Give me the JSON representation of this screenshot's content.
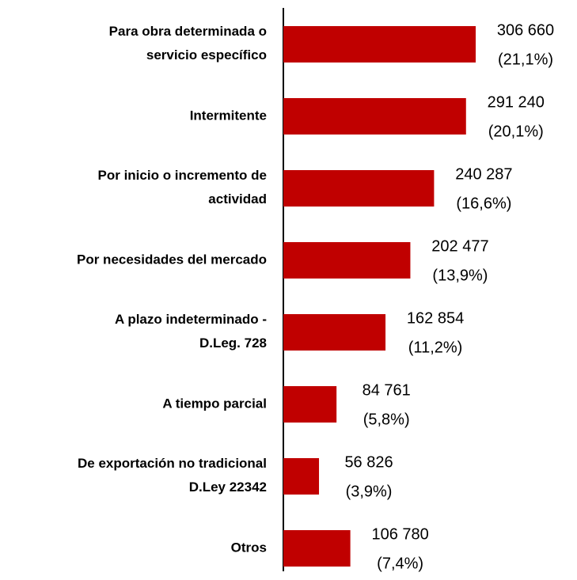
{
  "chart_data": {
    "type": "bar",
    "orientation": "horizontal",
    "color": "#c00000",
    "categories": [
      "Para obra determinada o\nservicio específico",
      "Intermitente",
      "Por inicio o incremento de\nactividad",
      "Por necesidades del mercado",
      "A plazo indeterminado -\nD.Leg. 728",
      "A tiempo parcial",
      "De exportación no tradicional\nD.Ley 22342",
      "Otros"
    ],
    "values": [
      306660,
      291240,
      240287,
      202477,
      162854,
      84761,
      56826,
      106780
    ],
    "value_labels": [
      "306 660",
      "291 240",
      "240 287",
      "202 477",
      "162 854",
      "84 761",
      "56 826",
      "106 780"
    ],
    "percentages": [
      21.1,
      20.1,
      16.6,
      13.9,
      11.2,
      5.8,
      3.9,
      7.4
    ],
    "percentage_labels": [
      "(21,1%)",
      "(20,1%)",
      "(16,6%)",
      "(13,9%)",
      "(11,2%)",
      "(5,8%)",
      "(3,9%)",
      "(7,4%)"
    ]
  }
}
